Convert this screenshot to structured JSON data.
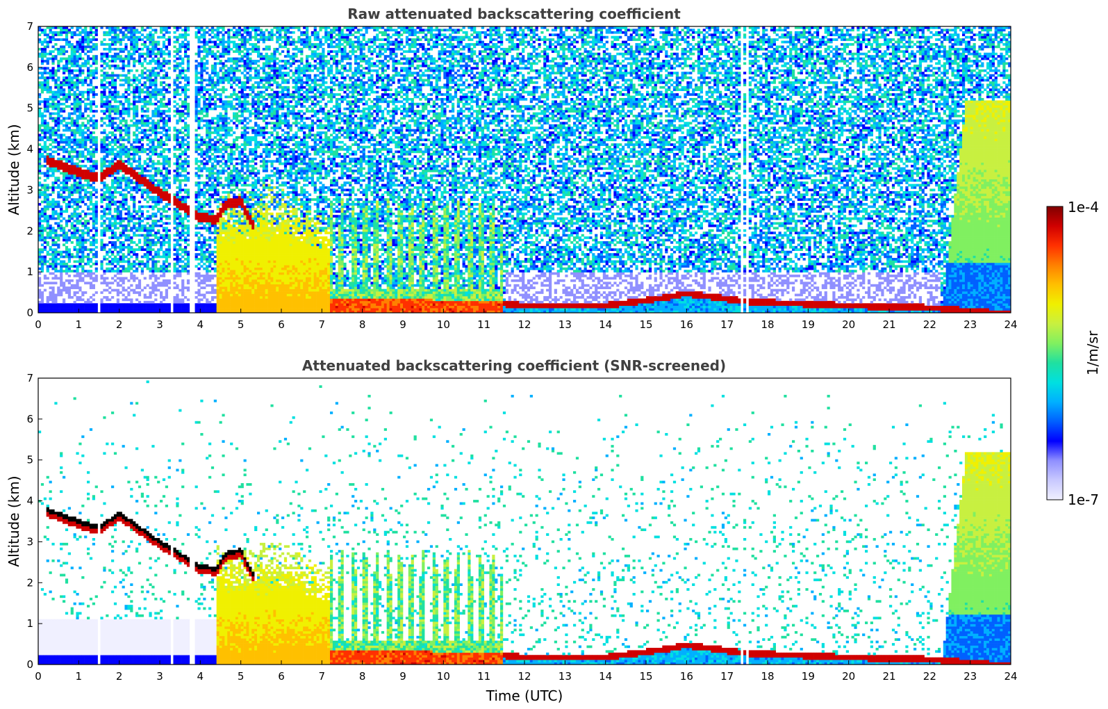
{
  "figure": {
    "colorbar": {
      "max_label": "1e-4",
      "min_label": "1e-7",
      "unit_label": "1/m/sr",
      "colormap": [
        "#f0f0ff",
        "#c8c8ff",
        "#9090ff",
        "#0000ff",
        "#0060ff",
        "#00b0ff",
        "#00e0e0",
        "#20e0a0",
        "#80f060",
        "#c8f040",
        "#f0f000",
        "#ffc000",
        "#ff8000",
        "#ff3000",
        "#d00000",
        "#800000"
      ]
    }
  },
  "chart_data": [
    {
      "type": "heatmap",
      "title": "Raw attenuated backscattering coefficient",
      "xlabel": "",
      "ylabel": "Altitude (km)",
      "xlim": [
        0,
        24
      ],
      "ylim": [
        0,
        7
      ],
      "xticks": [
        "0",
        "1",
        "2",
        "3",
        "4",
        "5",
        "6",
        "7",
        "8",
        "9",
        "10",
        "11",
        "12",
        "13",
        "14",
        "15",
        "16",
        "17",
        "18",
        "19",
        "20",
        "21",
        "22",
        "23",
        "24"
      ],
      "yticks": [
        "0",
        "1",
        "2",
        "3",
        "4",
        "5",
        "6",
        "7"
      ],
      "data_gaps_utc": [
        1.5,
        3.3,
        3.75,
        3.85,
        17.35,
        17.5
      ],
      "features": {
        "cloud_layer_top_km": [
          [
            0.2,
            3.8
          ],
          [
            1.0,
            3.5
          ],
          [
            1.5,
            3.35
          ],
          [
            2.0,
            3.7
          ],
          [
            3.0,
            3.0
          ],
          [
            4.0,
            2.4
          ],
          [
            4.4,
            2.35
          ],
          [
            4.6,
            2.7
          ],
          [
            5.0,
            2.8
          ],
          [
            5.3,
            2.2
          ]
        ],
        "dense_aerosol_region_utc": [
          4.4,
          7.2
        ],
        "aerosol_towers_utc": [
          7.2,
          11.5
        ],
        "boundary_layer_top_km": [
          [
            7.2,
            0.35
          ],
          [
            11.5,
            0.3
          ],
          [
            12,
            0.25
          ],
          [
            14,
            0.25
          ],
          [
            15.5,
            0.45
          ],
          [
            16,
            0.55
          ],
          [
            17.5,
            0.35
          ],
          [
            20,
            0.25
          ],
          [
            22,
            0.2
          ],
          [
            24,
            0.05
          ]
        ],
        "upper_aerosol_region_utc": [
          22.3,
          24
        ],
        "upper_aerosol_top_km": 5.2
      }
    },
    {
      "type": "heatmap",
      "title": "Attenuated backscattering coefficient (SNR-screened)",
      "xlabel": "Time (UTC)",
      "ylabel": "Altitude (km)",
      "xlim": [
        0,
        24
      ],
      "ylim": [
        0,
        7
      ],
      "xticks": [
        "0",
        "1",
        "2",
        "3",
        "4",
        "5",
        "6",
        "7",
        "8",
        "9",
        "10",
        "11",
        "12",
        "13",
        "14",
        "15",
        "16",
        "17",
        "18",
        "19",
        "20",
        "21",
        "22",
        "23",
        "24"
      ],
      "yticks": [
        "0",
        "1",
        "2",
        "3",
        "4",
        "5",
        "6",
        "7"
      ],
      "data_gaps_utc": [
        1.5,
        3.3,
        3.75,
        3.85,
        17.35,
        17.5
      ],
      "features": {
        "screened": true,
        "upper_aerosol_top_km": 5.3
      }
    }
  ]
}
